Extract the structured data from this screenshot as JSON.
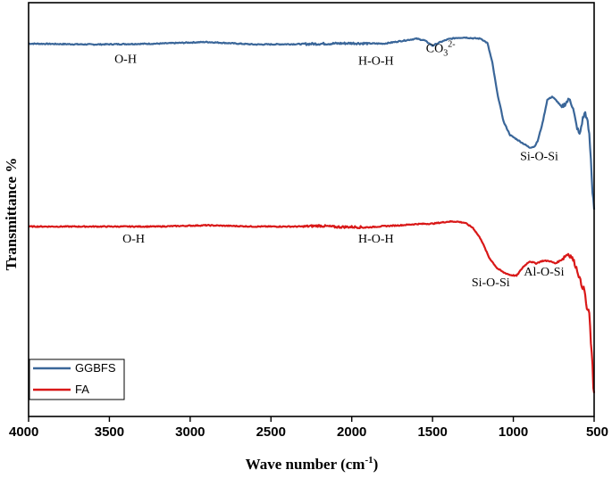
{
  "chart_data": {
    "type": "line",
    "title": "",
    "xlabel": "Wave number (cm",
    "xlabel_sup": "-1",
    "xlabel_tail": ")",
    "ylabel": "Transmittance %",
    "xlim": [
      4000,
      500
    ],
    "ylim": [
      0,
      100
    ],
    "x_reversed": true,
    "xticks": [
      4000,
      3500,
      3000,
      2500,
      2000,
      1500,
      1000,
      500
    ],
    "yticks": [],
    "grid": false,
    "legend_position": "bottom-left",
    "colors": {
      "GGBFS": "#3a6699",
      "FA": "#d91818"
    },
    "series": [
      {
        "name": "GGBFS",
        "x": [
          4000,
          3600,
          3200,
          2900,
          2600,
          2300,
          2000,
          1800,
          1600,
          1550,
          1500,
          1450,
          1400,
          1350,
          1300,
          1250,
          1200,
          1160,
          1130,
          1100,
          1060,
          1020,
          980,
          940,
          900,
          870,
          850,
          820,
          790,
          760,
          730,
          700,
          670,
          650,
          630,
          610,
          590,
          570,
          555,
          540,
          530,
          520,
          510,
          505,
          500
        ],
        "y": [
          90.1,
          89.9,
          90.1,
          90.5,
          89.9,
          90.0,
          90.2,
          90.1,
          91.3,
          90.9,
          89.6,
          90.5,
          91.2,
          91.5,
          91.6,
          91.4,
          91.3,
          90.2,
          85.5,
          78.3,
          71.2,
          68.0,
          67.0,
          66.0,
          65.0,
          65.2,
          66.5,
          70.8,
          76.5,
          77.3,
          76.2,
          74.7,
          76.0,
          76.8,
          74.3,
          70.4,
          68.0,
          72.0,
          73.5,
          71.0,
          68.0,
          62.0,
          54.0,
          53.0,
          50.0
        ],
        "labels": [
          {
            "text": "O-H",
            "x": 3400,
            "y": 85.5
          },
          {
            "text": "H-O-H",
            "x": 1850,
            "y": 85.0
          },
          {
            "text": "CO",
            "sub": "3",
            "sup": "2-",
            "x": 1450,
            "y": 88.0
          },
          {
            "text": "Si-O-Si",
            "x": 840,
            "y": 62.0
          }
        ]
      },
      {
        "name": "FA",
        "x": [
          4000,
          3600,
          3200,
          2900,
          2600,
          2300,
          2200,
          2100,
          2000,
          1900,
          1800,
          1700,
          1600,
          1500,
          1400,
          1350,
          1300,
          1250,
          1200,
          1150,
          1100,
          1060,
          1020,
          980,
          940,
          900,
          860,
          820,
          780,
          740,
          700,
          680,
          660,
          640,
          620,
          600,
          580,
          560,
          545,
          530,
          520,
          510,
          505,
          500
        ],
        "y": [
          45.9,
          45.9,
          45.9,
          46.2,
          45.9,
          45.9,
          46.1,
          45.8,
          45.8,
          45.7,
          46.0,
          46.2,
          46.5,
          46.6,
          47.1,
          47.1,
          46.8,
          45.6,
          42.8,
          38.4,
          35.8,
          34.8,
          34.2,
          34.0,
          36.1,
          37.5,
          37.0,
          37.6,
          37.6,
          37.0,
          37.9,
          38.8,
          39.3,
          38.6,
          37.0,
          34.8,
          32.0,
          30.5,
          26.0,
          25.0,
          18.0,
          12.0,
          7.0,
          6.0
        ],
        "labels": [
          {
            "text": "O-H",
            "x": 3350,
            "y": 42.0
          },
          {
            "text": "H-O-H",
            "x": 1850,
            "y": 42.0
          },
          {
            "text": "Si-O-Si",
            "x": 1140,
            "y": 31.5
          },
          {
            "text": "Al-O-Si",
            "x": 810,
            "y": 34.0
          }
        ]
      }
    ]
  }
}
